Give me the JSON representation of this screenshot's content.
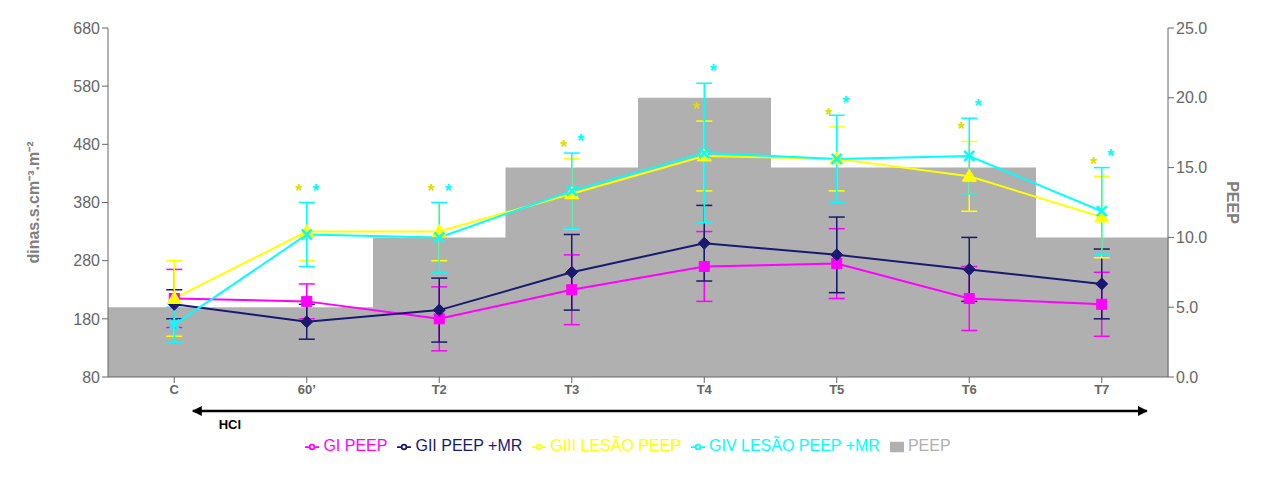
{
  "chart_data": {
    "type": "line",
    "categories": [
      "C",
      "60’",
      "T2",
      "T3",
      "T4",
      "T5",
      "T6",
      "T7"
    ],
    "ylabel": "dinas.s.cm⁻³.m⁻²",
    "y2label": "PEEP",
    "ylim": [
      80,
      680
    ],
    "yticks": [
      80,
      180,
      280,
      380,
      480,
      580,
      680
    ],
    "y2lim": [
      0.0,
      25.0
    ],
    "y2ticks": [
      {
        "value": 0,
        "label": "0.0"
      },
      {
        "value": 5,
        "label": "5.0"
      },
      {
        "value": 10,
        "label": "10.0"
      },
      {
        "value": 15,
        "label": "15.0"
      },
      {
        "value": 20,
        "label": "20.0"
      },
      {
        "value": 25,
        "label": "25.0"
      }
    ],
    "grid": false,
    "legend": "bottom",
    "series": [
      {
        "name": "PEEP",
        "type": "bar",
        "axis": "y2",
        "color": "#b0b0b0",
        "values": [
          5.0,
          5.0,
          10.0,
          15.0,
          20.0,
          15.0,
          15.0,
          10.0
        ]
      },
      {
        "name": "GI PEEP",
        "type": "line",
        "color": "#ff00ff",
        "marker": "square",
        "values": [
          215,
          210,
          180,
          230,
          270,
          275,
          215,
          205
        ],
        "errors": [
          50,
          30,
          55,
          60,
          60,
          60,
          55,
          55
        ]
      },
      {
        "name": "GII PEEP +MR",
        "type": "line",
        "color": "#191970",
        "marker": "diamond",
        "values": [
          205,
          175,
          195,
          260,
          310,
          290,
          265,
          240
        ],
        "errors": [
          25,
          30,
          55,
          65,
          65,
          65,
          55,
          60
        ]
      },
      {
        "name": "GIII LESÃO PEEP",
        "type": "line",
        "color": "#ffff00",
        "marker": "triangle",
        "values": [
          215,
          330,
          330,
          395,
          460,
          455,
          425,
          355
        ],
        "errors": [
          65,
          50,
          50,
          60,
          60,
          55,
          60,
          70
        ]
      },
      {
        "name": "GIV LESÃO PEEP +MR",
        "type": "line",
        "color": "#00ffff",
        "marker": "x",
        "values": [
          170,
          325,
          320,
          400,
          465,
          455,
          460,
          365
        ],
        "errors": [
          30,
          55,
          60,
          65,
          120,
          75,
          65,
          75
        ]
      }
    ],
    "annotations": [
      {
        "text": "*",
        "series": "GIII LESÃO PEEP",
        "category": "60’",
        "color": "#dddd00"
      },
      {
        "text": "*",
        "series": "GIII LESÃO PEEP",
        "category": "T2",
        "color": "#dddd00"
      },
      {
        "text": "*",
        "series": "GIII LESÃO PEEP",
        "category": "T3",
        "color": "#dddd00"
      },
      {
        "text": "*",
        "series": "GIII LESÃO PEEP",
        "category": "T4",
        "color": "#dddd00"
      },
      {
        "text": "*",
        "series": "GIII LESÃO PEEP",
        "category": "T5",
        "color": "#dddd00"
      },
      {
        "text": "*",
        "series": "GIII LESÃO PEEP",
        "category": "T6",
        "color": "#dddd00"
      },
      {
        "text": "*",
        "series": "GIII LESÃO PEEP",
        "category": "T7",
        "color": "#dddd00"
      },
      {
        "text": "*",
        "series": "GIV LESÃO PEEP +MR",
        "category": "60’",
        "color": "#00ffff"
      },
      {
        "text": "*",
        "series": "GIV LESÃO PEEP +MR",
        "category": "T2",
        "color": "#00ffff"
      },
      {
        "text": "*",
        "series": "GIV LESÃO PEEP +MR",
        "category": "T3",
        "color": "#00ffff"
      },
      {
        "text": "*",
        "series": "GIV LESÃO PEEP +MR",
        "category": "T4",
        "color": "#00ffff"
      },
      {
        "text": "*",
        "series": "GIV LESÃO PEEP +MR",
        "category": "T5",
        "color": "#00ffff"
      },
      {
        "text": "*",
        "series": "GIV LESÃO PEEP +MR",
        "category": "T6",
        "color": "#00ffff"
      },
      {
        "text": "*",
        "series": "GIV LESÃO PEEP +MR",
        "category": "T7",
        "color": "#00ffff"
      },
      {
        "text": "HCl"
      }
    ]
  }
}
